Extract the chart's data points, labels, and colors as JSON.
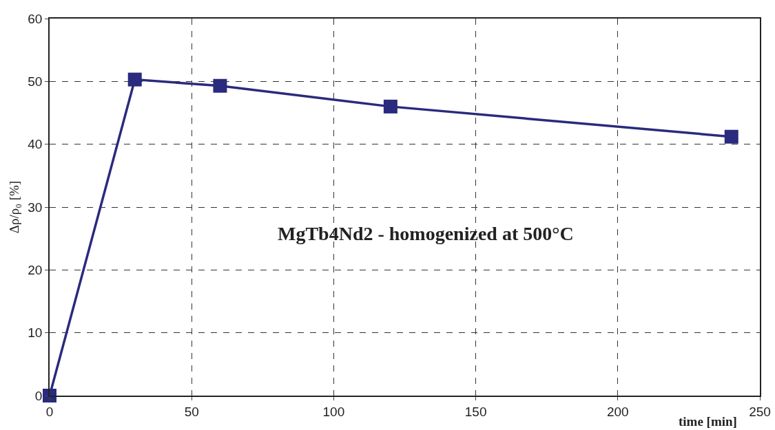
{
  "chart_data": {
    "type": "line",
    "xlabel": "time [min]",
    "ylabel": "Δρ/ρ₀ [%]",
    "annotations": [
      "MgTb4Nd2 - homogenized at 500°C"
    ],
    "x": [
      0,
      30,
      60,
      120,
      240
    ],
    "series": [
      {
        "color": "#2a2a7e",
        "values": [
          0,
          50.3,
          49.3,
          46.0,
          41.2
        ]
      }
    ],
    "xlim": [
      0,
      250
    ],
    "xticks": [
      0,
      50,
      100,
      150,
      200,
      250
    ],
    "ylim": [
      0,
      60
    ],
    "yticks": [
      0,
      10,
      20,
      30,
      40,
      50,
      60
    ],
    "grid": true,
    "marker": "square",
    "line_style": "solid"
  }
}
